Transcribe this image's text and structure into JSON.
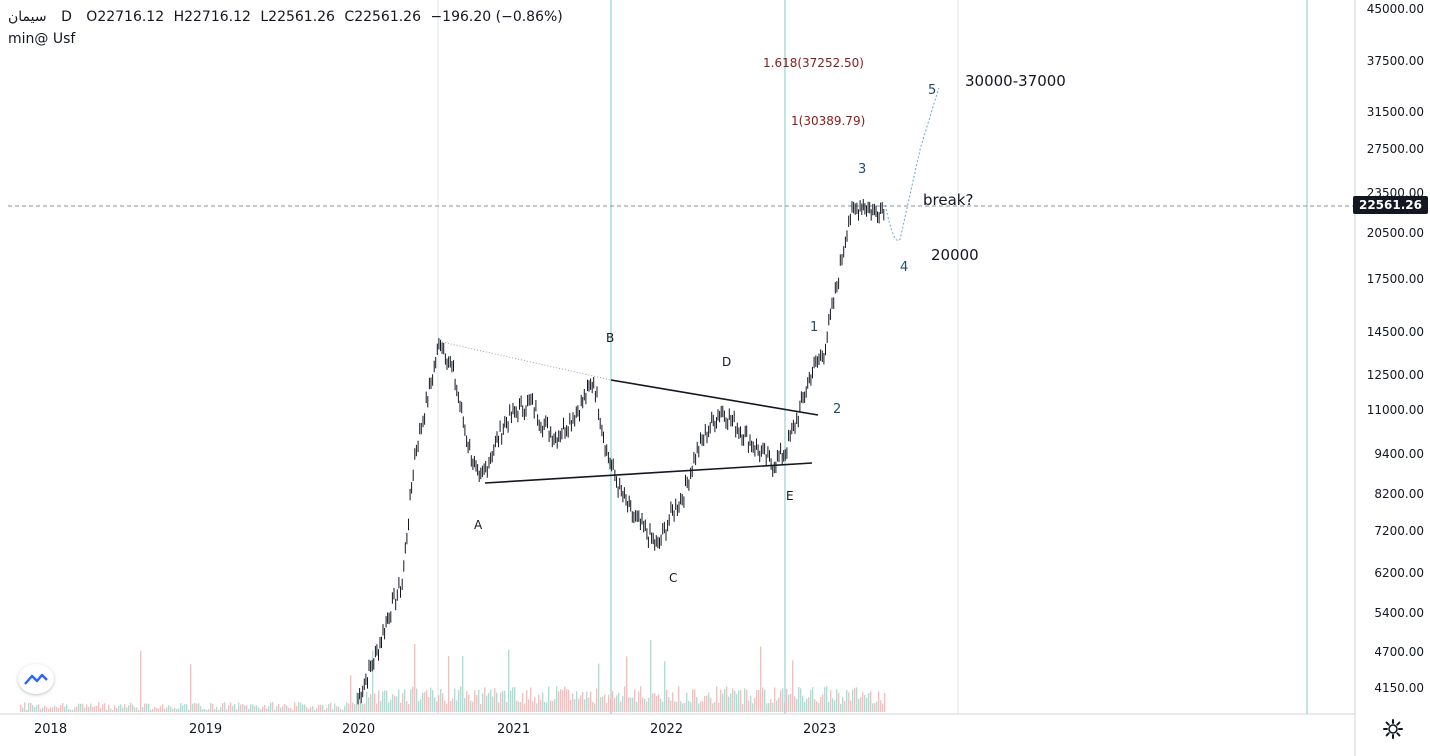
{
  "legend": {
    "symbol": "سیمان",
    "interval": "D",
    "open": "O22716.12",
    "high": "H22716.12",
    "low": "L22561.26",
    "close": "C22561.26",
    "change": "−196.20 (−0.86%)",
    "indicator": "min@ Usf"
  },
  "current_price": "22561.26",
  "price_axis": [
    "45000.00",
    "37500.00",
    "31500.00",
    "27500.00",
    "23500.00",
    "20500.00",
    "17500.00",
    "14500.00",
    "12500.00",
    "11000.00",
    "9400.00",
    "8200.00",
    "7200.00",
    "6200.00",
    "5400.00",
    "4700.00",
    "4150.00"
  ],
  "time_axis": [
    "2018",
    "2019",
    "2020",
    "2021",
    "2022",
    "2023"
  ],
  "annotations": {
    "target_range": "30000-37000",
    "break": "break?",
    "support": "20000",
    "fib_1618": "1.618(37252.50)",
    "fib_1": "1(30389.79)"
  },
  "waves": {
    "A": "A",
    "B": "B",
    "C": "C",
    "D": "D",
    "E": "E",
    "w1": "1",
    "w2": "2",
    "w3": "3",
    "w4": "4",
    "w5": "5"
  },
  "colors": {
    "candle": "#131722",
    "volume_up": "#8fd3c7",
    "volume_down": "#f3a8a8",
    "vline": "#7ec8c8",
    "fib": "#8b1a1a",
    "wave": "#1f4e6b"
  },
  "chart_data": {
    "type": "line",
    "x": [
      "2020-01-01",
      "2020-02-15",
      "2020-03-15",
      "2020-04-15",
      "2020-05-15",
      "2020-06-15",
      "2020-07-15",
      "2020-08-15",
      "2020-09-15",
      "2020-10-15",
      "2020-11-15",
      "2020-12-15",
      "2021-01-15",
      "2021-02-15",
      "2021-03-15",
      "2021-04-15",
      "2021-05-15",
      "2021-06-15",
      "2021-07-15",
      "2021-08-15",
      "2021-09-15",
      "2021-10-15",
      "2021-11-15",
      "2021-12-15",
      "2022-01-15",
      "2022-02-15",
      "2022-03-15",
      "2022-04-15",
      "2022-05-15",
      "2022-06-15",
      "2022-07-15",
      "2022-08-15",
      "2022-09-15",
      "2022-10-15",
      "2022-11-15",
      "2022-12-15",
      "2023-01-15",
      "2023-02-15",
      "2023-03-15",
      "2023-04-15",
      "2023-05-15",
      "2023-06-10"
    ],
    "series": [
      {
        "values": [
          4000,
          4700,
          5400,
          6000,
          9400,
          11500,
          14100,
          12500,
          10000,
          8500,
          9500,
          10500,
          11000,
          11300,
          10500,
          10000,
          10500,
          11200,
          12200,
          9500,
          8300,
          7600,
          7200,
          6800,
          7600,
          8200,
          9400,
          10300,
          11000,
          10500,
          10000,
          9500,
          9100,
          9500,
          10800,
          12500,
          13500,
          17000,
          21500,
          22700,
          22000,
          22561
        ]
      }
    ],
    "ylim": [
      4000,
      45000
    ],
    "log_scale": true,
    "projection": {
      "x": [
        "2023-06-10",
        "2023-07-15",
        "2023-09-01",
        "2023-10-15"
      ],
      "values": [
        22561,
        20000,
        27500,
        34000
      ]
    },
    "grid": false
  }
}
